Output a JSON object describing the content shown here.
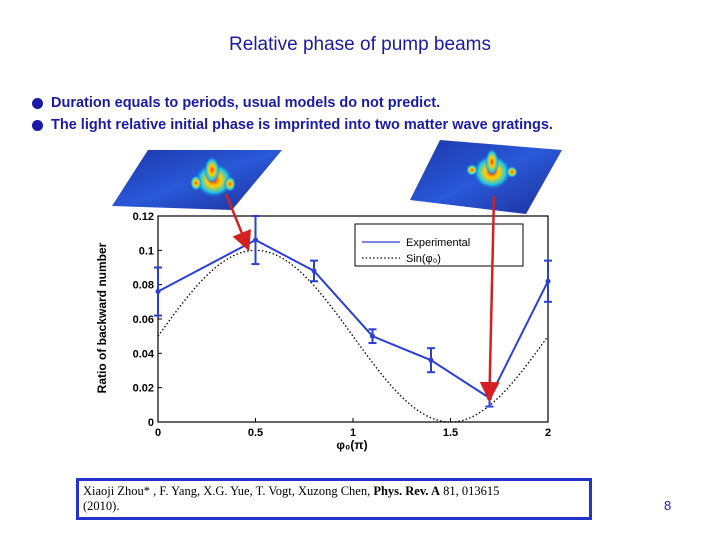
{
  "slide": {
    "title": "Relative phase of pump beams",
    "bullets": [
      "Duration equals  to periods, usual  models do not predict.",
      "The light relative initial phase  is imprinted into two matter wave gratings."
    ],
    "reference": {
      "authors": "Xiaoji Zhou* , F. Yang, X.G. Yue,  T. Vogt,  Xuzong Chen,",
      "journal": "Phys. Rev. A",
      "details": "81,  013615",
      "year": "(2010)."
    },
    "page_number": "8"
  },
  "chart_data": {
    "type": "line",
    "xlabel": "φ₀(π)",
    "ylabel": "Ratio of backward number",
    "xlim": [
      0,
      2
    ],
    "ylim": [
      0,
      0.12
    ],
    "x_ticks": [
      "0",
      "0.5",
      "1",
      "1.5",
      "2"
    ],
    "y_ticks": [
      "0",
      "0.02",
      "0.04",
      "0.06",
      "0.08",
      "0.1",
      "0.12"
    ],
    "legend_position": "top-right",
    "series": [
      {
        "name": "Experimental",
        "color": "#2a3fd6",
        "x": [
          0,
          0.5,
          0.8,
          1.1,
          1.4,
          1.7,
          2.0
        ],
        "y": [
          0.076,
          0.106,
          0.088,
          0.05,
          0.036,
          0.014,
          0.082
        ],
        "err": [
          0.014,
          0.014,
          0.006,
          0.004,
          0.007,
          0.005,
          0.012
        ]
      },
      {
        "name": "Sin(φ₀)",
        "color": "#000000",
        "style": "dotted",
        "x_range": [
          0,
          2
        ],
        "form": "0.05 + 0.05*sin(pi*x)"
      }
    ],
    "arrows_color": "#d42020"
  }
}
